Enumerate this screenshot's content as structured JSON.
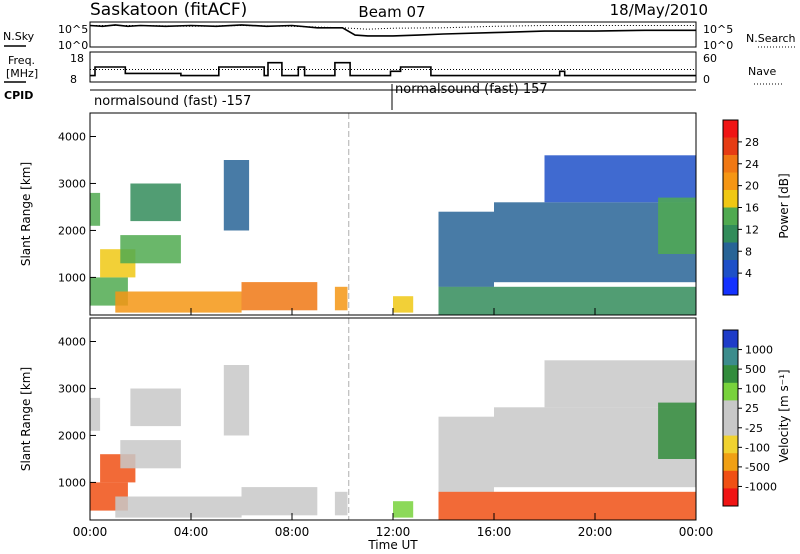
{
  "header": {
    "station": "Saskatoon (fitACF)",
    "beam": "Beam 07",
    "date": "18/May/2010"
  },
  "top_panel": {
    "nsky_label": "N.Sky",
    "nsky_ticks": [
      "10^5",
      "10^0"
    ],
    "nsearch_ticks": [
      "10^5",
      "10^0"
    ],
    "nsearch_label": "N.Search",
    "freq_label_1": "Freq.",
    "freq_label_2": "[MHz]",
    "freq_ticks": [
      "18",
      "8"
    ],
    "nave_ticks": [
      "60",
      "0"
    ],
    "nave_label": "Nave",
    "cpid_label": "CPID",
    "cpid_segments": [
      {
        "label": "normalsound (fast) -157",
        "start_hour": 0,
        "end_hour": 12
      },
      {
        "label": "normalsound (fast) 157",
        "start_hour": 12,
        "end_hour": 24
      }
    ]
  },
  "power_colorbar": {
    "title": "Power [dB]",
    "ticks": [
      "28",
      "24",
      "20",
      "16",
      "12",
      "8",
      "4"
    ],
    "colors": [
      "#1432ff",
      "#1e50c8",
      "#286496",
      "#328c5a",
      "#50aa50",
      "#f0c814",
      "#f59614",
      "#f07814",
      "#e63c14",
      "#f01414"
    ]
  },
  "velocity_colorbar": {
    "title": "Velocity [m s⁻¹]",
    "ticks": [
      "1000",
      "500",
      "100",
      "25",
      "-25",
      "-100",
      "-500",
      "-1000"
    ],
    "colors": [
      "#f01414",
      "#f05014",
      "#f0a014",
      "#f0d230",
      "#c8c8c8",
      "#c8c8c8",
      "#78d23c",
      "#328c3c",
      "#3c8c8c",
      "#1e3cc8"
    ]
  },
  "axes": {
    "ylabel": "Slant Range [km]",
    "xlabel": "Time UT",
    "yticks": [
      "1000",
      "2000",
      "3000",
      "4000"
    ],
    "xticks": [
      "00:00",
      "04:00",
      "08:00",
      "12:00",
      "16:00",
      "20:00",
      "00:00"
    ]
  },
  "chart_data": [
    {
      "type": "line",
      "title": "Saskatoon (fitACF) Beam 07 18/May/2010",
      "xlabel": "Time UT",
      "ylabel": "",
      "xlim": [
        0,
        24
      ],
      "log_scale": true,
      "series": [
        {
          "name": "N.Sky",
          "x": [
            0,
            0.5,
            1,
            1.5,
            2,
            3,
            4,
            5,
            6,
            7,
            8,
            9,
            10,
            10.5,
            11,
            12,
            13,
            14,
            16,
            18,
            20,
            22,
            24
          ],
          "y": [
            30000,
            20000,
            40000,
            20000,
            30000,
            20000,
            30000,
            20000,
            40000,
            20000,
            30000,
            10000,
            10000,
            300,
            200,
            200,
            300,
            500,
            1000,
            2000,
            2000,
            3000,
            3000
          ]
        },
        {
          "name": "N.Search",
          "x": [
            0,
            2,
            4,
            6,
            8,
            10,
            11,
            12,
            14,
            16,
            18,
            20,
            22,
            24
          ],
          "y": [
            30000,
            30000,
            20000,
            30000,
            20000,
            10000,
            5000,
            8000,
            10000,
            20000,
            30000,
            30000,
            30000,
            30000
          ]
        }
      ]
    },
    {
      "type": "line",
      "xlabel": "Time UT",
      "ylabel": "Freq. [MHz]",
      "xlim": [
        0,
        24
      ],
      "series": [
        {
          "name": "Freq.",
          "x": [
            0,
            0.2,
            0.2,
            1.4,
            1.4,
            3.6,
            3.6,
            5.1,
            5.1,
            6.9,
            6.9,
            7.05,
            7.05,
            7.6,
            7.6,
            8.25,
            8.25,
            8.5,
            8.5,
            9.7,
            9.7,
            10.3,
            10.3,
            11.1,
            11.1,
            11.9,
            11.9,
            12.3,
            12.3,
            13.5,
            13.5,
            18.6,
            18.6,
            18.8,
            18.8,
            24
          ],
          "y": [
            9,
            9,
            13,
            13,
            10,
            10,
            9,
            9,
            13,
            13,
            9,
            9,
            15,
            15,
            9,
            9,
            13,
            13,
            9,
            9,
            15,
            15,
            9,
            9,
            9,
            9,
            11,
            11,
            13,
            13,
            9,
            9,
            11,
            11,
            9,
            9
          ]
        },
        {
          "name": "Nave",
          "x": [
            0,
            24
          ],
          "y": [
            25,
            25
          ]
        }
      ]
    },
    {
      "type": "heatmap",
      "xlabel": "Time UT",
      "ylabel": "Slant Range [km]",
      "xlim": [
        0,
        24
      ],
      "ylim": [
        200,
        4500
      ],
      "zlabel": "Power [dB]",
      "zlim": [
        0,
        30
      ],
      "regions": [
        {
          "t": [
            0.0,
            0.4
          ],
          "r": [
            2100,
            2800
          ],
          "p": 14
        },
        {
          "t": [
            0.0,
            1.5
          ],
          "r": [
            400,
            1000
          ],
          "p": 12
        },
        {
          "t": [
            0.4,
            1.8
          ],
          "r": [
            1000,
            1600
          ],
          "p": 16
        },
        {
          "t": [
            1.2,
            3.6
          ],
          "r": [
            1300,
            1900
          ],
          "p": 14
        },
        {
          "t": [
            1.6,
            3.6
          ],
          "r": [
            2200,
            3000
          ],
          "p": 10
        },
        {
          "t": [
            1.0,
            6.0
          ],
          "r": [
            250,
            700
          ],
          "p": 20
        },
        {
          "t": [
            5.3,
            6.3
          ],
          "r": [
            2000,
            3500
          ],
          "p": 8
        },
        {
          "t": [
            6.0,
            9.0
          ],
          "r": [
            300,
            900
          ],
          "p": 22
        },
        {
          "t": [
            9.7,
            10.2
          ],
          "r": [
            300,
            800
          ],
          "p": 18
        },
        {
          "t": [
            12.0,
            12.8
          ],
          "r": [
            250,
            600
          ],
          "p": 16
        },
        {
          "t": [
            13.8,
            16.0
          ],
          "r": [
            800,
            2400
          ],
          "p": 6
        },
        {
          "t": [
            13.8,
            24.0
          ],
          "r": [
            200,
            800
          ],
          "p": 10
        },
        {
          "t": [
            16.0,
            24.0
          ],
          "r": [
            900,
            2600
          ],
          "p": 6
        },
        {
          "t": [
            18.0,
            24.0
          ],
          "r": [
            2600,
            3600
          ],
          "p": 4
        },
        {
          "t": [
            22.5,
            24.0
          ],
          "r": [
            1500,
            2700
          ],
          "p": 14
        }
      ]
    },
    {
      "type": "heatmap",
      "xlabel": "Time UT",
      "ylabel": "Slant Range [km]",
      "xlim": [
        0,
        24
      ],
      "ylim": [
        200,
        4500
      ],
      "zlabel": "Velocity [m s⁻¹]",
      "zlim": [
        -1000,
        1000
      ],
      "regions": [
        {
          "t": [
            0.0,
            0.4
          ],
          "r": [
            2100,
            2800
          ],
          "v": 0
        },
        {
          "t": [
            0.0,
            1.5
          ],
          "r": [
            400,
            1000
          ],
          "v": -200
        },
        {
          "t": [
            0.4,
            1.8
          ],
          "r": [
            1000,
            1600
          ],
          "v": -100
        },
        {
          "t": [
            1.2,
            3.6
          ],
          "r": [
            1300,
            1900
          ],
          "v": 0
        },
        {
          "t": [
            1.6,
            3.6
          ],
          "r": [
            2200,
            3000
          ],
          "v": 0
        },
        {
          "t": [
            1.0,
            6.0
          ],
          "r": [
            250,
            700
          ],
          "v": 0
        },
        {
          "t": [
            5.3,
            6.3
          ],
          "r": [
            2000,
            3500
          ],
          "v": 0
        },
        {
          "t": [
            6.0,
            9.0
          ],
          "r": [
            300,
            900
          ],
          "v": 0
        },
        {
          "t": [
            9.7,
            10.2
          ],
          "r": [
            300,
            800
          ],
          "v": 0
        },
        {
          "t": [
            12.0,
            12.8
          ],
          "r": [
            250,
            600
          ],
          "v": 80
        },
        {
          "t": [
            13.8,
            16.0
          ],
          "r": [
            800,
            2400
          ],
          "v": 0
        },
        {
          "t": [
            13.8,
            24.0
          ],
          "r": [
            200,
            800
          ],
          "v": -150
        },
        {
          "t": [
            16.0,
            24.0
          ],
          "r": [
            900,
            2600
          ],
          "v": 0
        },
        {
          "t": [
            18.0,
            24.0
          ],
          "r": [
            2600,
            3600
          ],
          "v": 0
        },
        {
          "t": [
            22.5,
            24.0
          ],
          "r": [
            1500,
            2700
          ],
          "v": 150
        }
      ]
    }
  ]
}
